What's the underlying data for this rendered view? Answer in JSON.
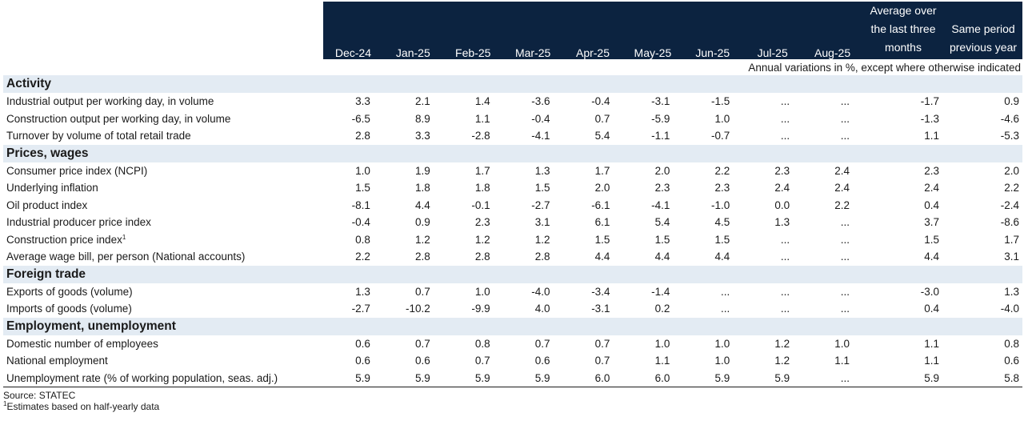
{
  "header": {
    "months": [
      "Dec-24",
      "Jan-25",
      "Feb-25",
      "Mar-25",
      "Apr-25",
      "May-25",
      "Jun-25",
      "Jul-25",
      "Aug-25"
    ],
    "avg_line1": "Average over",
    "avg_line2": "the last three",
    "avg_line3": "months",
    "prev_line1": "Same period",
    "prev_line2": "previous year",
    "note": "Annual variations in %, except where otherwise indicated"
  },
  "sections": [
    {
      "title": "Activity",
      "rows": [
        {
          "label": "Industrial output per working day, in volume",
          "sup": "",
          "values": [
            "3.3",
            "2.1",
            "1.4",
            "-3.6",
            "-0.4",
            "-3.1",
            "-1.5",
            "...",
            "...",
            "-1.7",
            "0.9"
          ]
        },
        {
          "label": "Construction output per working day, in volume",
          "sup": "",
          "values": [
            "-6.5",
            "8.9",
            "1.1",
            "-0.4",
            "0.7",
            "-5.9",
            "1.0",
            "...",
            "...",
            "-1.3",
            "-4.6"
          ]
        },
        {
          "label": "Turnover by volume of total retail trade",
          "sup": "",
          "values": [
            "2.8",
            "3.3",
            "-2.8",
            "-4.1",
            "5.4",
            "-1.1",
            "-0.7",
            "...",
            "...",
            "1.1",
            "-5.3"
          ]
        }
      ]
    },
    {
      "title": "Prices, wages",
      "rows": [
        {
          "label": "Consumer price index (NCPI)",
          "sup": "",
          "values": [
            "1.0",
            "1.9",
            "1.7",
            "1.3",
            "1.7",
            "2.0",
            "2.2",
            "2.3",
            "2.4",
            "2.3",
            "2.0"
          ]
        },
        {
          "label": "Underlying inflation",
          "sup": "",
          "values": [
            "1.5",
            "1.8",
            "1.8",
            "1.5",
            "2.0",
            "2.3",
            "2.3",
            "2.4",
            "2.4",
            "2.4",
            "2.2"
          ]
        },
        {
          "label": "Oil product index",
          "sup": "",
          "values": [
            "-8.1",
            "4.4",
            "-0.1",
            "-2.7",
            "-6.1",
            "-4.1",
            "-1.0",
            "0.0",
            "2.2",
            "0.4",
            "-2.4"
          ]
        },
        {
          "label": "Industrial producer price index",
          "sup": "",
          "values": [
            "-0.4",
            "0.9",
            "2.3",
            "3.1",
            "6.1",
            "5.4",
            "4.5",
            "1.3",
            "...",
            "3.7",
            "-8.6"
          ]
        },
        {
          "label": "Construction price index",
          "sup": "1",
          "values": [
            "0.8",
            "1.2",
            "1.2",
            "1.2",
            "1.5",
            "1.5",
            "1.5",
            "...",
            "...",
            "1.5",
            "1.7"
          ]
        },
        {
          "label": "Average wage bill, per person (National accounts)",
          "sup": "",
          "values": [
            "2.2",
            "2.8",
            "2.8",
            "2.8",
            "4.4",
            "4.4",
            "4.4",
            "...",
            "...",
            "4.4",
            "3.1"
          ]
        }
      ]
    },
    {
      "title": "Foreign trade",
      "rows": [
        {
          "label": "Exports of goods (volume)",
          "sup": "",
          "values": [
            "1.3",
            "0.7",
            "1.0",
            "-4.0",
            "-3.4",
            "-1.4",
            "...",
            "...",
            "...",
            "-3.0",
            "1.3"
          ]
        },
        {
          "label": "Imports of goods (volume)",
          "sup": "",
          "values": [
            "-2.7",
            "-10.2",
            "-9.9",
            "4.0",
            "-3.1",
            "0.2",
            "...",
            "...",
            "...",
            "0.4",
            "-4.0"
          ]
        }
      ]
    },
    {
      "title": "Employment, unemployment",
      "rows": [
        {
          "label": "Domestic number of employees",
          "sup": "",
          "values": [
            "0.6",
            "0.7",
            "0.8",
            "0.7",
            "0.7",
            "1.0",
            "1.0",
            "1.2",
            "1.0",
            "1.1",
            "0.8"
          ]
        },
        {
          "label": "National employment",
          "sup": "",
          "values": [
            "0.6",
            "0.6",
            "0.7",
            "0.6",
            "0.7",
            "1.1",
            "1.0",
            "1.2",
            "1.1",
            "1.1",
            "0.6"
          ]
        },
        {
          "label": "Unemployment rate (% of working population, seas. adj.)",
          "sup": "",
          "values": [
            "5.9",
            "5.9",
            "5.9",
            "5.9",
            "6.0",
            "6.0",
            "5.9",
            "5.9",
            "...",
            "5.9",
            "5.8"
          ]
        }
      ]
    }
  ],
  "footer": {
    "source": "Source: STATEC",
    "footnote_mark": "1",
    "footnote": "Estimates based on half-yearly data"
  }
}
